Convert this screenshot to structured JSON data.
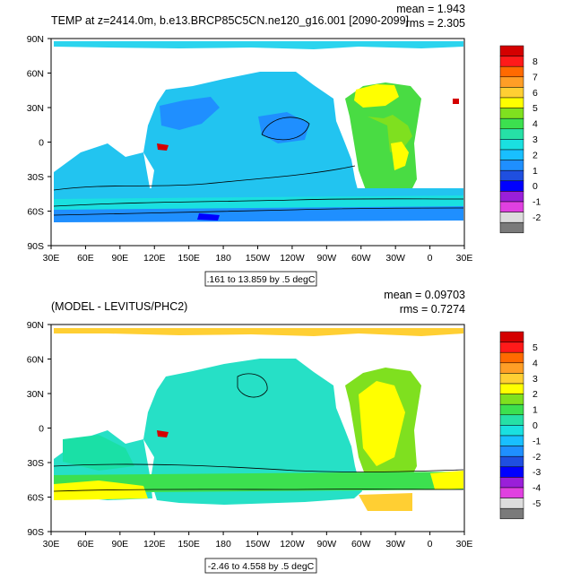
{
  "panels": [
    {
      "title": "TEMP at z=2414.0m, b.e13.BRCP85C5CN.ne120_g16.001 [2090-2099]",
      "mean_label": "mean = 1.943",
      "rms_label": "rms = 2.305",
      "range_label": ".161 to 13.859 by .5 degC",
      "colorbar_labels": [
        "8",
        "7",
        "6",
        "5",
        "4",
        "3",
        "2",
        "1",
        "0",
        "-1",
        "-2"
      ],
      "colorbar_colors": [
        "#d40000",
        "#ff1a1a",
        "#ff6a00",
        "#ff9e26",
        "#ffcf33",
        "#ffff00",
        "#7fe01f",
        "#3ce04f",
        "#26e0a6",
        "#1ae0e0",
        "#19bfff",
        "#1f8fff",
        "#1f4fe0",
        "#0000ff",
        "#9a1fd9",
        "#e040e0",
        "#dcdcdc",
        "#7a7a7a"
      ]
    },
    {
      "title": "(MODEL - LEVITUS/PHC2)",
      "mean_label": "mean = 0.09703",
      "rms_label": "rms = 0.7274",
      "range_label": "-2.46 to 4.558 by .5 degC",
      "colorbar_labels": [
        "5",
        "4",
        "3",
        "2",
        "1",
        "0",
        "-1",
        "-2",
        "-3",
        "-4",
        "-5"
      ],
      "colorbar_colors": [
        "#d40000",
        "#ff1a1a",
        "#ff6a00",
        "#ff9e26",
        "#ffcf33",
        "#ffff00",
        "#7fe01f",
        "#3ce04f",
        "#26e0a6",
        "#1ae0e0",
        "#19bfff",
        "#1f8fff",
        "#1f4fe0",
        "#0000ff",
        "#9a1fd9",
        "#e040e0",
        "#dcdcdc",
        "#7a7a7a"
      ]
    }
  ],
  "chart_data": [
    {
      "type": "heatmap",
      "title": "TEMP at z=2414.0m, b.e13.BRCP85C5CN.ne120_g16.001 [2090-2099]",
      "variable": "ocean potential temperature at 2414 m depth",
      "units": "degC",
      "stats": {
        "mean": 1.943,
        "rms": 2.305,
        "min": 0.161,
        "max": 13.859,
        "interval": 0.5
      },
      "x_ticks": [
        "30E",
        "60E",
        "90E",
        "120E",
        "150E",
        "180",
        "150W",
        "120W",
        "90W",
        "60W",
        "30W",
        "0",
        "30E"
      ],
      "y_ticks": [
        "90N",
        "60N",
        "30N",
        "0",
        "30S",
        "60S",
        "90S"
      ],
      "xlim": [
        30,
        390
      ],
      "ylim": [
        -90,
        90
      ],
      "colorbar_levels": [
        "8",
        "7",
        "6",
        "5",
        "4",
        "3",
        "2",
        "1",
        "0",
        "-1",
        "-2"
      ]
    },
    {
      "type": "heatmap",
      "title": "(MODEL - LEVITUS/PHC2)",
      "variable": "temperature difference model minus Levitus/PHC2",
      "units": "degC",
      "stats": {
        "mean": 0.09703,
        "rms": 0.7274,
        "min": -2.46,
        "max": 4.558,
        "interval": 0.5
      },
      "x_ticks": [
        "30E",
        "60E",
        "90E",
        "120E",
        "150E",
        "180",
        "150W",
        "120W",
        "90W",
        "60W",
        "30W",
        "0",
        "30E"
      ],
      "y_ticks": [
        "90N",
        "60N",
        "30N",
        "0",
        "30S",
        "60S",
        "90S"
      ],
      "xlim": [
        30,
        390
      ],
      "ylim": [
        -90,
        90
      ],
      "colorbar_levels": [
        "5",
        "4",
        "3",
        "2",
        "1",
        "0",
        "-1",
        "-2",
        "-3",
        "-4",
        "-5"
      ]
    }
  ]
}
